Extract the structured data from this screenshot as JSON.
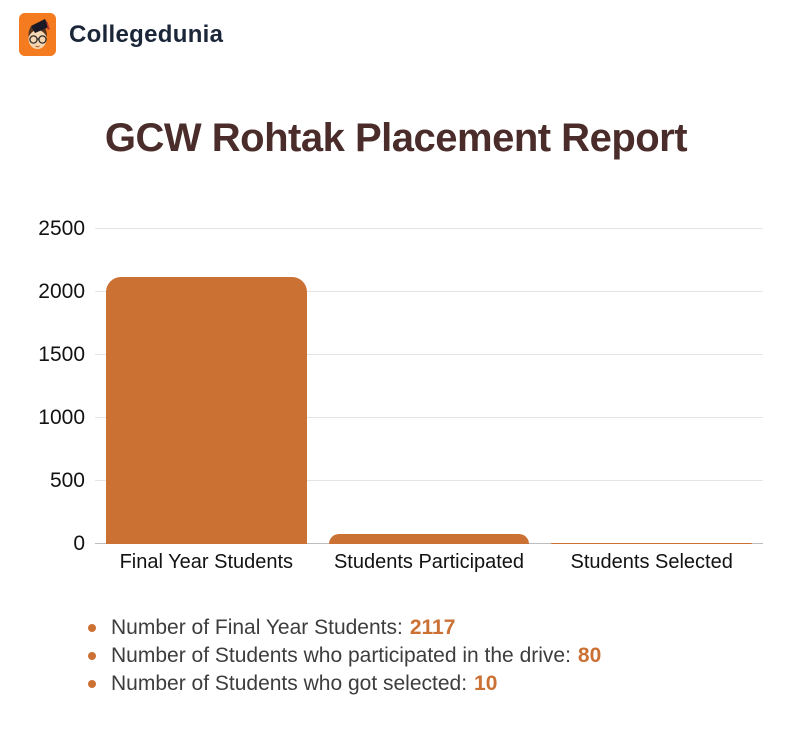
{
  "brand": {
    "name": "Collegedunia",
    "logo_icon": "student-face-icon",
    "logo_color": "#F47B20"
  },
  "title": "GCW Rohtak Placement Report",
  "colors": {
    "accent": "#CC7134",
    "bar": "#CC7134",
    "title": "#4A2D2B",
    "brand_text": "#1B2639",
    "body_text": "#3D3D3D",
    "gridline": "#E4E4E4",
    "axis_line": "#BDBDBD"
  },
  "chart_data": {
    "type": "bar",
    "title": "GCW Rohtak Placement Report",
    "categories": [
      "Final Year Students",
      "Students Participated",
      "Students Selected"
    ],
    "values": [
      2117,
      80,
      10
    ],
    "xlabel": "",
    "ylabel": "",
    "ylim": [
      0,
      2500
    ],
    "yticks": [
      2500,
      2000,
      1500,
      1000,
      500,
      0
    ],
    "grid": true,
    "legend": "none",
    "bar_color": "#CC7134"
  },
  "notes": [
    {
      "label": "Number of Final Year Students:",
      "value": "2117"
    },
    {
      "label": "Number of Students who participated in the drive:",
      "value": "80"
    },
    {
      "label": "Number of Students who got selected:",
      "value": "10"
    }
  ]
}
